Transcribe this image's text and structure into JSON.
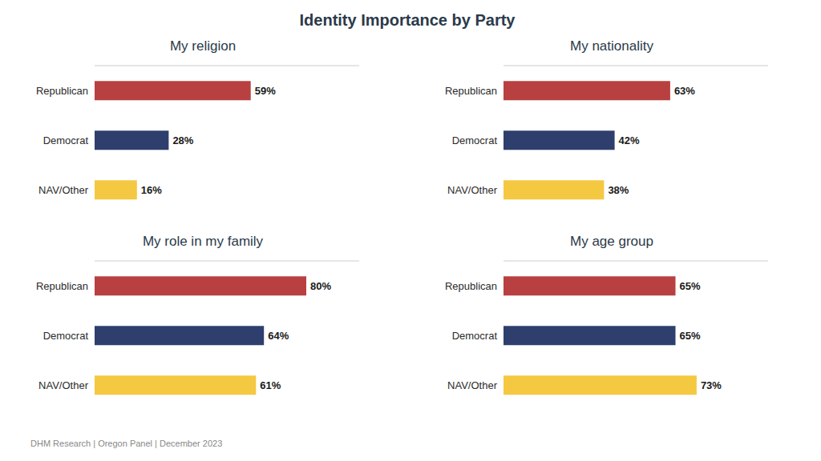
{
  "title": "Identity Importance by Party",
  "subtitle": "DHM Research | Oregon Panel | December 2023",
  "chart_data": [
    {
      "type": "bar",
      "title": "My religion",
      "orientation": "horizontal",
      "categories": [
        "Republican",
        "Democrat",
        "NAV/Other"
      ],
      "values": [
        59,
        28,
        16
      ],
      "value_labels": [
        "59%",
        "28%",
        "16%"
      ],
      "colors": [
        "#b94040",
        "#2e3f6e",
        "#f5c842"
      ],
      "xlim": [
        0,
        100
      ],
      "data_labels": true,
      "tick_labels": "y",
      "grid": false
    },
    {
      "type": "bar",
      "title": "My nationality",
      "orientation": "horizontal",
      "categories": [
        "Republican",
        "Democrat",
        "NAV/Other"
      ],
      "values": [
        63,
        42,
        38
      ],
      "value_labels": [
        "63%",
        "42%",
        "38%"
      ],
      "colors": [
        "#b94040",
        "#2e3f6e",
        "#f5c842"
      ],
      "xlim": [
        0,
        100
      ],
      "data_labels": true,
      "tick_labels": "y",
      "grid": false
    },
    {
      "type": "bar",
      "title": "My role in my family",
      "orientation": "horizontal",
      "categories": [
        "Republican",
        "Democrat",
        "NAV/Other"
      ],
      "values": [
        80,
        64,
        61
      ],
      "value_labels": [
        "80%",
        "64%",
        "61%"
      ],
      "colors": [
        "#b94040",
        "#2e3f6e",
        "#f5c842"
      ],
      "xlim": [
        0,
        100
      ],
      "data_labels": true,
      "tick_labels": "y",
      "grid": false
    },
    {
      "type": "bar",
      "title": "My age group",
      "orientation": "horizontal",
      "categories": [
        "Republican",
        "Democrat",
        "NAV/Other"
      ],
      "values": [
        65,
        65,
        73
      ],
      "value_labels": [
        "65%",
        "65%",
        "73%"
      ],
      "colors": [
        "#b94040",
        "#2e3f6e",
        "#f5c842"
      ],
      "xlim": [
        0,
        100
      ],
      "data_labels": true,
      "tick_labels": "y",
      "grid": false
    }
  ]
}
